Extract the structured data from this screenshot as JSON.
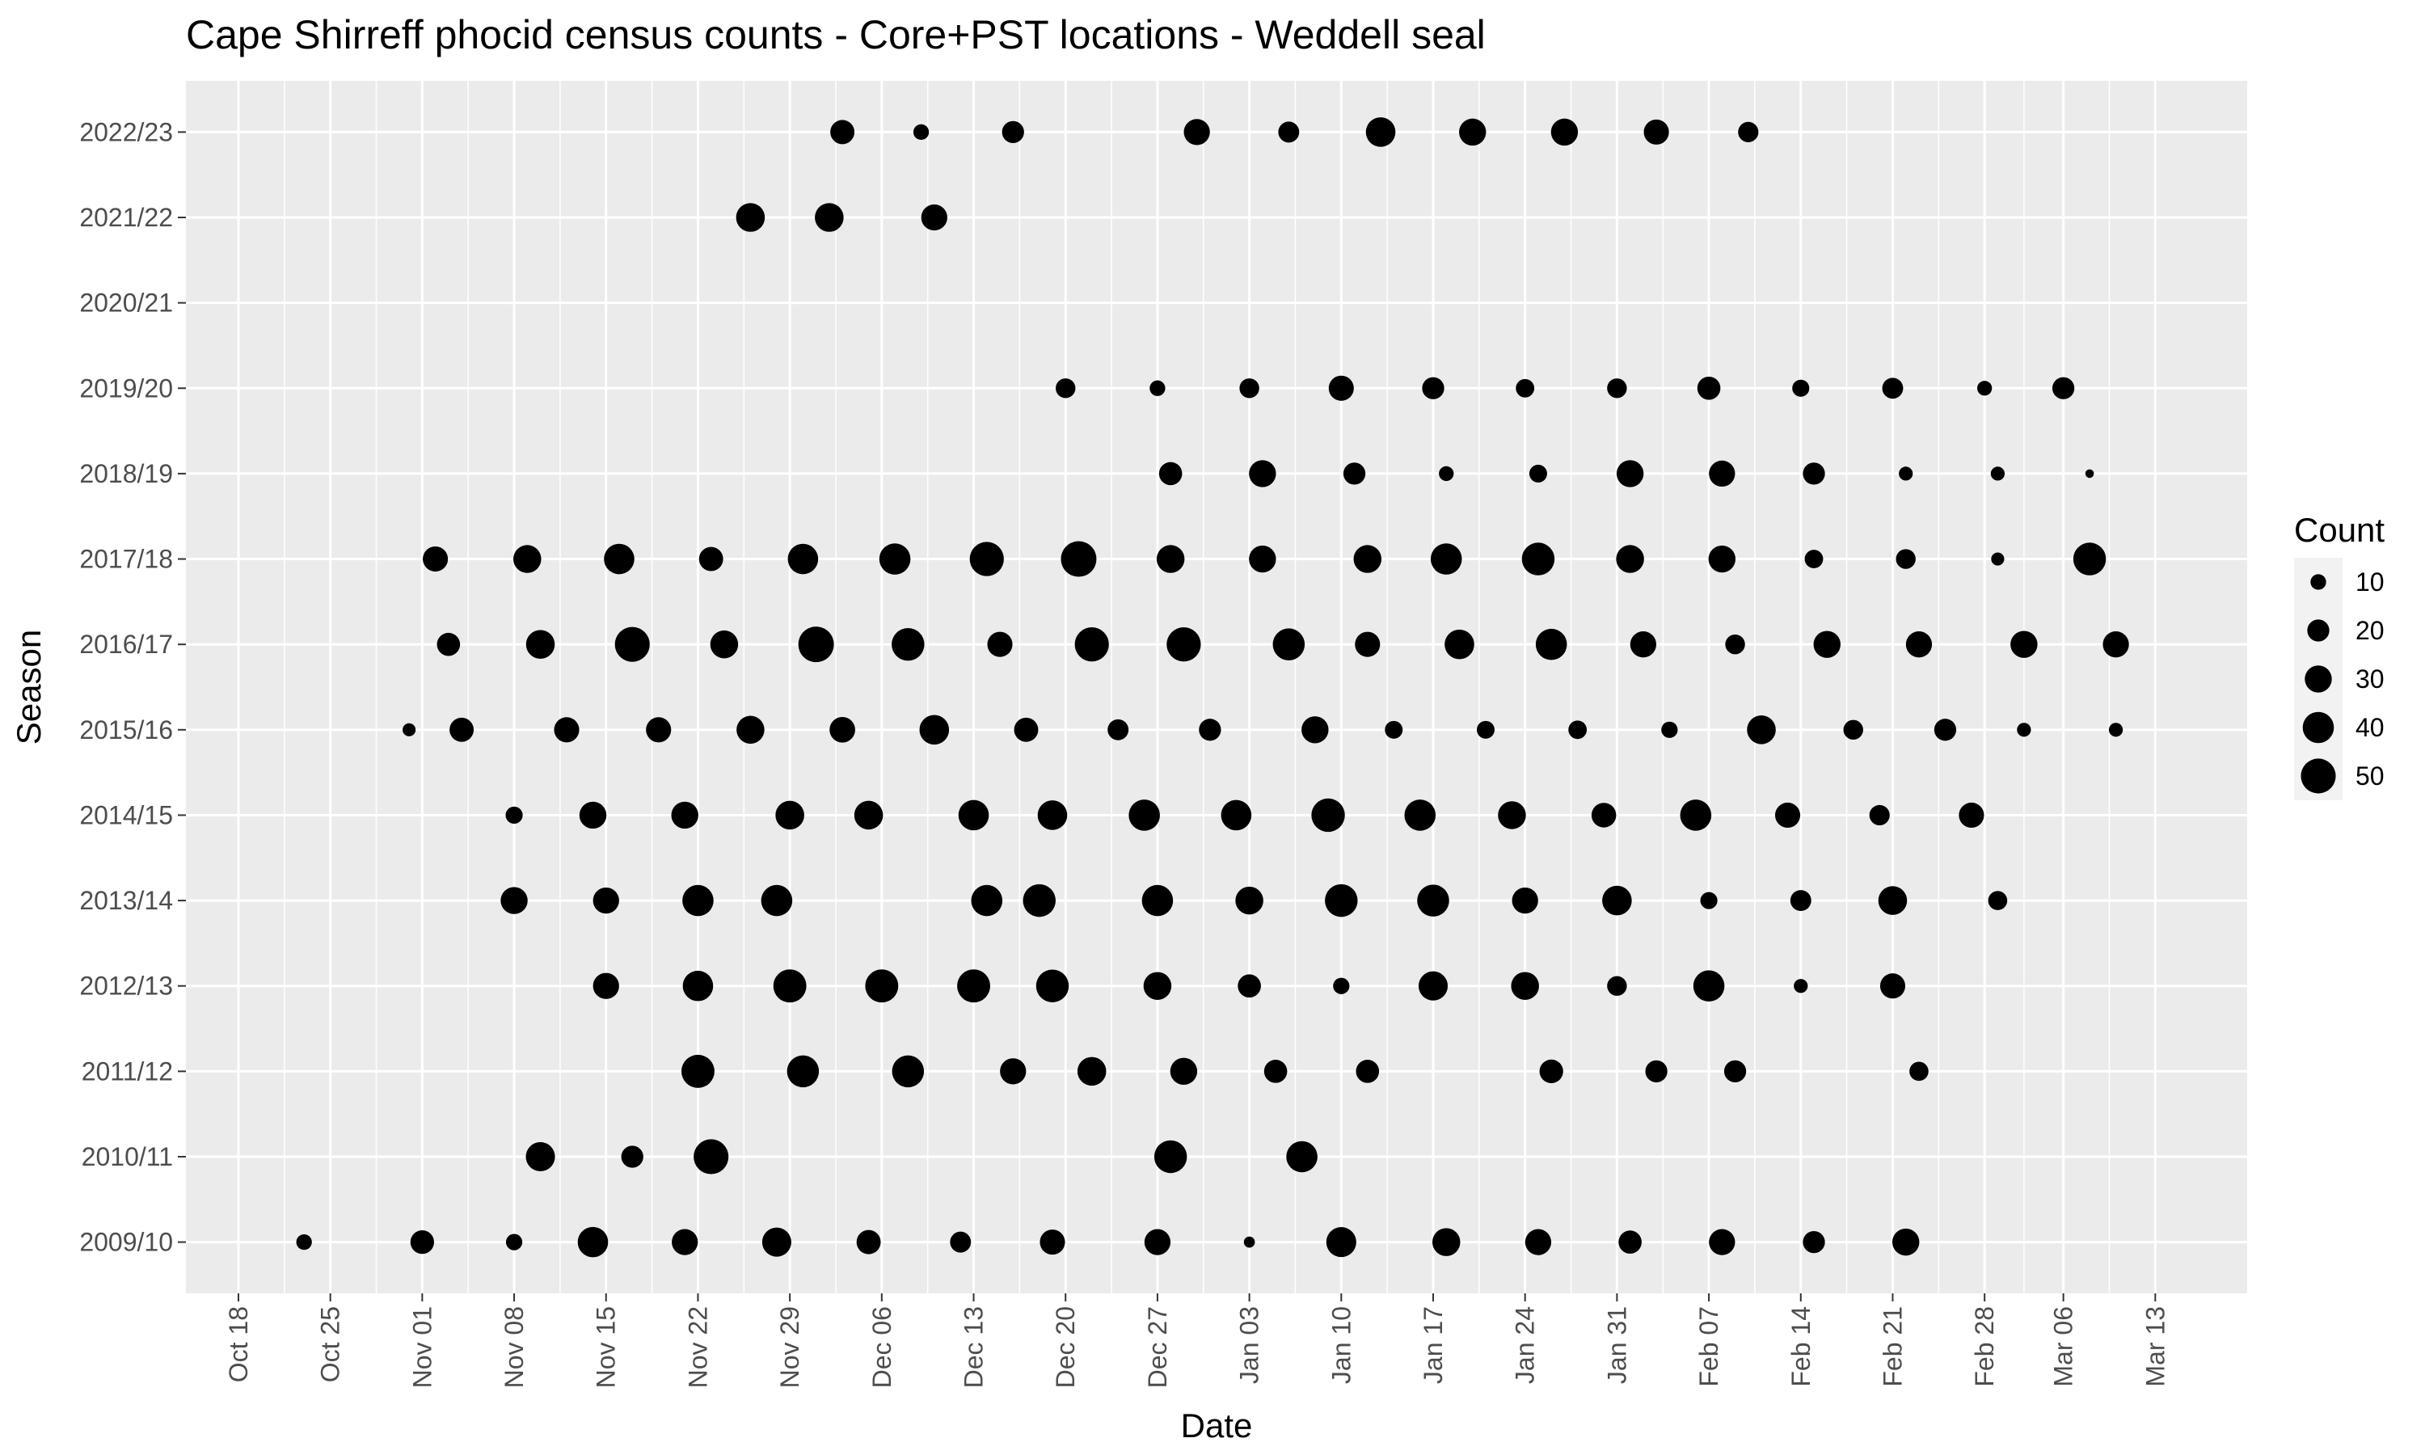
{
  "chart_data": {
    "type": "scatter",
    "title": "Cape Shirreff phocid census counts - Core+PST locations - Weddell seal",
    "xlabel": "Date",
    "ylabel": "Season",
    "xlim": [
      "Oct 14",
      "Mar 20"
    ],
    "x_ticks": [
      "Oct 18",
      "Oct 25",
      "Nov 01",
      "Nov 08",
      "Nov 15",
      "Nov 22",
      "Nov 29",
      "Dec 06",
      "Dec 13",
      "Dec 20",
      "Dec 27",
      "Jan 03",
      "Jan 10",
      "Jan 17",
      "Jan 24",
      "Jan 31",
      "Feb 07",
      "Feb 14",
      "Feb 21",
      "Feb 28",
      "Mar 06",
      "Mar 13"
    ],
    "categories": [
      "2009/10",
      "2010/11",
      "2011/12",
      "2012/13",
      "2013/14",
      "2014/15",
      "2015/16",
      "2016/17",
      "2017/18",
      "2018/19",
      "2019/20",
      "2020/21",
      "2021/22",
      "2022/23"
    ],
    "size_legend": {
      "title": "Count",
      "values": [
        10,
        20,
        30,
        40,
        50
      ]
    },
    "grid": true,
    "legend_position": "right",
    "colors": {
      "panel": "#ebebeb",
      "grid": "#ffffff",
      "point": "#000000"
    },
    "series": [
      {
        "values": [
          {
            "x": "Oct 23",
            "y": "2009/10",
            "count": 10
          },
          {
            "x": "Nov 01",
            "y": "2009/10",
            "count": 23
          },
          {
            "x": "Nov 08",
            "y": "2009/10",
            "count": 11
          },
          {
            "x": "Nov 14",
            "y": "2009/10",
            "count": 38
          },
          {
            "x": "Nov 21",
            "y": "2009/10",
            "count": 28
          },
          {
            "x": "Nov 28",
            "y": "2009/10",
            "count": 35
          },
          {
            "x": "Dec 05",
            "y": "2009/10",
            "count": 24
          },
          {
            "x": "Dec 12",
            "y": "2009/10",
            "count": 18
          },
          {
            "x": "Dec 19",
            "y": "2009/10",
            "count": 26
          },
          {
            "x": "Dec 27",
            "y": "2009/10",
            "count": 28
          },
          {
            "x": "Jan 03",
            "y": "2009/10",
            "count": 5
          },
          {
            "x": "Jan 10",
            "y": "2009/10",
            "count": 37
          },
          {
            "x": "Jan 18",
            "y": "2009/10",
            "count": 32
          },
          {
            "x": "Jan 25",
            "y": "2009/10",
            "count": 28
          },
          {
            "x": "Feb 01",
            "y": "2009/10",
            "count": 22
          },
          {
            "x": "Feb 08",
            "y": "2009/10",
            "count": 28
          },
          {
            "x": "Feb 15",
            "y": "2009/10",
            "count": 20
          },
          {
            "x": "Feb 22",
            "y": "2009/10",
            "count": 30
          },
          {
            "x": "Nov 10",
            "y": "2010/11",
            "count": 35
          },
          {
            "x": "Nov 17",
            "y": "2010/11",
            "count": 20
          },
          {
            "x": "Nov 23",
            "y": "2010/11",
            "count": 50
          },
          {
            "x": "Dec 28",
            "y": "2010/11",
            "count": 44
          },
          {
            "x": "Jan 07",
            "y": "2010/11",
            "count": 40
          },
          {
            "x": "Nov 22",
            "y": "2011/12",
            "count": 45
          },
          {
            "x": "Nov 30",
            "y": "2011/12",
            "count": 42
          },
          {
            "x": "Dec 08",
            "y": "2011/12",
            "count": 42
          },
          {
            "x": "Dec 16",
            "y": "2011/12",
            "count": 28
          },
          {
            "x": "Dec 22",
            "y": "2011/12",
            "count": 34
          },
          {
            "x": "Dec 29",
            "y": "2011/12",
            "count": 30
          },
          {
            "x": "Jan 05",
            "y": "2011/12",
            "count": 22
          },
          {
            "x": "Jan 12",
            "y": "2011/12",
            "count": 22
          },
          {
            "x": "Jan 26",
            "y": "2011/12",
            "count": 23
          },
          {
            "x": "Feb 03",
            "y": "2011/12",
            "count": 20
          },
          {
            "x": "Feb 09",
            "y": "2011/12",
            "count": 20
          },
          {
            "x": "Feb 23",
            "y": "2011/12",
            "count": 15
          },
          {
            "x": "Nov 15",
            "y": "2012/13",
            "count": 28
          },
          {
            "x": "Nov 22",
            "y": "2012/13",
            "count": 38
          },
          {
            "x": "Nov 29",
            "y": "2012/13",
            "count": 45
          },
          {
            "x": "Dec 06",
            "y": "2012/13",
            "count": 45
          },
          {
            "x": "Dec 13",
            "y": "2012/13",
            "count": 45
          },
          {
            "x": "Dec 19",
            "y": "2012/13",
            "count": 44
          },
          {
            "x": "Dec 27",
            "y": "2012/13",
            "count": 32
          },
          {
            "x": "Jan 03",
            "y": "2012/13",
            "count": 22
          },
          {
            "x": "Jan 10",
            "y": "2012/13",
            "count": 11
          },
          {
            "x": "Jan 17",
            "y": "2012/13",
            "count": 35
          },
          {
            "x": "Jan 24",
            "y": "2012/13",
            "count": 32
          },
          {
            "x": "Jan 31",
            "y": "2012/13",
            "count": 16
          },
          {
            "x": "Feb 07",
            "y": "2012/13",
            "count": 40
          },
          {
            "x": "Feb 14",
            "y": "2012/13",
            "count": 8
          },
          {
            "x": "Feb 21",
            "y": "2012/13",
            "count": 26
          },
          {
            "x": "Nov 08",
            "y": "2013/14",
            "count": 30
          },
          {
            "x": "Nov 15",
            "y": "2013/14",
            "count": 28
          },
          {
            "x": "Nov 22",
            "y": "2013/14",
            "count": 40
          },
          {
            "x": "Nov 28",
            "y": "2013/14",
            "count": 40
          },
          {
            "x": "Dec 14",
            "y": "2013/14",
            "count": 40
          },
          {
            "x": "Dec 18",
            "y": "2013/14",
            "count": 44
          },
          {
            "x": "Dec 27",
            "y": "2013/14",
            "count": 40
          },
          {
            "x": "Jan 03",
            "y": "2013/14",
            "count": 32
          },
          {
            "x": "Jan 10",
            "y": "2013/14",
            "count": 44
          },
          {
            "x": "Jan 17",
            "y": "2013/14",
            "count": 42
          },
          {
            "x": "Jan 24",
            "y": "2013/14",
            "count": 28
          },
          {
            "x": "Jan 31",
            "y": "2013/14",
            "count": 36
          },
          {
            "x": "Feb 07",
            "y": "2013/14",
            "count": 12
          },
          {
            "x": "Feb 14",
            "y": "2013/14",
            "count": 18
          },
          {
            "x": "Feb 21",
            "y": "2013/14",
            "count": 34
          },
          {
            "x": "Mar 01",
            "y": "2013/14",
            "count": 15
          },
          {
            "x": "Nov 08",
            "y": "2014/15",
            "count": 12
          },
          {
            "x": "Nov 14",
            "y": "2014/15",
            "count": 30
          },
          {
            "x": "Nov 21",
            "y": "2014/15",
            "count": 30
          },
          {
            "x": "Nov 29",
            "y": "2014/15",
            "count": 34
          },
          {
            "x": "Dec 05",
            "y": "2014/15",
            "count": 34
          },
          {
            "x": "Dec 13",
            "y": "2014/15",
            "count": 38
          },
          {
            "x": "Dec 19",
            "y": "2014/15",
            "count": 36
          },
          {
            "x": "Dec 26",
            "y": "2014/15",
            "count": 40
          },
          {
            "x": "Jan 02",
            "y": "2014/15",
            "count": 38
          },
          {
            "x": "Jan 09",
            "y": "2014/15",
            "count": 46
          },
          {
            "x": "Jan 16",
            "y": "2014/15",
            "count": 40
          },
          {
            "x": "Jan 23",
            "y": "2014/15",
            "count": 32
          },
          {
            "x": "Jan 30",
            "y": "2014/15",
            "count": 25
          },
          {
            "x": "Feb 06",
            "y": "2014/15",
            "count": 40
          },
          {
            "x": "Feb 13",
            "y": "2014/15",
            "count": 26
          },
          {
            "x": "Feb 20",
            "y": "2014/15",
            "count": 17
          },
          {
            "x": "Feb 27",
            "y": "2014/15",
            "count": 26
          },
          {
            "x": "Oct 31",
            "y": "2015/16",
            "count": 7
          },
          {
            "x": "Nov 04",
            "y": "2015/16",
            "count": 24
          },
          {
            "x": "Nov 12",
            "y": "2015/16",
            "count": 26
          },
          {
            "x": "Nov 19",
            "y": "2015/16",
            "count": 26
          },
          {
            "x": "Nov 26",
            "y": "2015/16",
            "count": 32
          },
          {
            "x": "Dec 03",
            "y": "2015/16",
            "count": 27
          },
          {
            "x": "Dec 10",
            "y": "2015/16",
            "count": 36
          },
          {
            "x": "Dec 17",
            "y": "2015/16",
            "count": 24
          },
          {
            "x": "Dec 24",
            "y": "2015/16",
            "count": 18
          },
          {
            "x": "Dec 31",
            "y": "2015/16",
            "count": 20
          },
          {
            "x": "Jan 08",
            "y": "2015/16",
            "count": 30
          },
          {
            "x": "Jan 14",
            "y": "2015/16",
            "count": 13
          },
          {
            "x": "Jan 21",
            "y": "2015/16",
            "count": 13
          },
          {
            "x": "Jan 28",
            "y": "2015/16",
            "count": 14
          },
          {
            "x": "Feb 04",
            "y": "2015/16",
            "count": 11
          },
          {
            "x": "Feb 11",
            "y": "2015/16",
            "count": 34
          },
          {
            "x": "Feb 18",
            "y": "2015/16",
            "count": 16
          },
          {
            "x": "Feb 25",
            "y": "2015/16",
            "count": 20
          },
          {
            "x": "Mar 03",
            "y": "2015/16",
            "count": 8
          },
          {
            "x": "Mar 10",
            "y": "2015/16",
            "count": 8
          },
          {
            "x": "Nov 03",
            "y": "2016/17",
            "count": 22
          },
          {
            "x": "Nov 10",
            "y": "2016/17",
            "count": 34
          },
          {
            "x": "Nov 17",
            "y": "2016/17",
            "count": 50
          },
          {
            "x": "Nov 24",
            "y": "2016/17",
            "count": 32
          },
          {
            "x": "Dec 01",
            "y": "2016/17",
            "count": 52
          },
          {
            "x": "Dec 08",
            "y": "2016/17",
            "count": 44
          },
          {
            "x": "Dec 15",
            "y": "2016/17",
            "count": 26
          },
          {
            "x": "Dec 22",
            "y": "2016/17",
            "count": 48
          },
          {
            "x": "Dec 29",
            "y": "2016/17",
            "count": 48
          },
          {
            "x": "Jan 06",
            "y": "2016/17",
            "count": 42
          },
          {
            "x": "Jan 12",
            "y": "2016/17",
            "count": 26
          },
          {
            "x": "Jan 19",
            "y": "2016/17",
            "count": 36
          },
          {
            "x": "Jan 26",
            "y": "2016/17",
            "count": 40
          },
          {
            "x": "Feb 02",
            "y": "2016/17",
            "count": 28
          },
          {
            "x": "Feb 09",
            "y": "2016/17",
            "count": 16
          },
          {
            "x": "Feb 16",
            "y": "2016/17",
            "count": 30
          },
          {
            "x": "Feb 23",
            "y": "2016/17",
            "count": 28
          },
          {
            "x": "Mar 03",
            "y": "2016/17",
            "count": 30
          },
          {
            "x": "Mar 10",
            "y": "2016/17",
            "count": 28
          },
          {
            "x": "Nov 02",
            "y": "2017/18",
            "count": 26
          },
          {
            "x": "Nov 09",
            "y": "2017/18",
            "count": 32
          },
          {
            "x": "Nov 16",
            "y": "2017/18",
            "count": 38
          },
          {
            "x": "Nov 23",
            "y": "2017/18",
            "count": 24
          },
          {
            "x": "Nov 30",
            "y": "2017/18",
            "count": 38
          },
          {
            "x": "Dec 07",
            "y": "2017/18",
            "count": 40
          },
          {
            "x": "Dec 14",
            "y": "2017/18",
            "count": 48
          },
          {
            "x": "Dec 21",
            "y": "2017/18",
            "count": 52
          },
          {
            "x": "Dec 28",
            "y": "2017/18",
            "count": 32
          },
          {
            "x": "Jan 04",
            "y": "2017/18",
            "count": 30
          },
          {
            "x": "Jan 12",
            "y": "2017/18",
            "count": 32
          },
          {
            "x": "Jan 18",
            "y": "2017/18",
            "count": 40
          },
          {
            "x": "Jan 25",
            "y": "2017/18",
            "count": 44
          },
          {
            "x": "Feb 01",
            "y": "2017/18",
            "count": 32
          },
          {
            "x": "Feb 08",
            "y": "2017/18",
            "count": 30
          },
          {
            "x": "Feb 15",
            "y": "2017/18",
            "count": 14
          },
          {
            "x": "Feb 22",
            "y": "2017/18",
            "count": 16
          },
          {
            "x": "Mar 01",
            "y": "2017/18",
            "count": 7
          },
          {
            "x": "Mar 08",
            "y": "2017/18",
            "count": 44
          },
          {
            "x": "Dec 28",
            "y": "2018/19",
            "count": 22
          },
          {
            "x": "Jan 04",
            "y": "2018/19",
            "count": 30
          },
          {
            "x": "Jan 11",
            "y": "2018/19",
            "count": 20
          },
          {
            "x": "Jan 18",
            "y": "2018/19",
            "count": 9
          },
          {
            "x": "Jan 25",
            "y": "2018/19",
            "count": 13
          },
          {
            "x": "Feb 01",
            "y": "2018/19",
            "count": 30
          },
          {
            "x": "Feb 08",
            "y": "2018/19",
            "count": 28
          },
          {
            "x": "Feb 15",
            "y": "2018/19",
            "count": 20
          },
          {
            "x": "Feb 22",
            "y": "2018/19",
            "count": 8
          },
          {
            "x": "Mar 01",
            "y": "2018/19",
            "count": 8
          },
          {
            "x": "Mar 08",
            "y": "2018/19",
            "count": 3
          },
          {
            "x": "Dec 20",
            "y": "2019/20",
            "count": 16
          },
          {
            "x": "Dec 27",
            "y": "2019/20",
            "count": 10
          },
          {
            "x": "Jan 03",
            "y": "2019/20",
            "count": 16
          },
          {
            "x": "Jan 10",
            "y": "2019/20",
            "count": 26
          },
          {
            "x": "Jan 17",
            "y": "2019/20",
            "count": 20
          },
          {
            "x": "Jan 24",
            "y": "2019/20",
            "count": 14
          },
          {
            "x": "Jan 31",
            "y": "2019/20",
            "count": 16
          },
          {
            "x": "Feb 07",
            "y": "2019/20",
            "count": 22
          },
          {
            "x": "Feb 14",
            "y": "2019/20",
            "count": 12
          },
          {
            "x": "Feb 21",
            "y": "2019/20",
            "count": 18
          },
          {
            "x": "Feb 28",
            "y": "2019/20",
            "count": 9
          },
          {
            "x": "Mar 06",
            "y": "2019/20",
            "count": 20
          },
          {
            "x": "Nov 26",
            "y": "2021/22",
            "count": 34
          },
          {
            "x": "Dec 02",
            "y": "2021/22",
            "count": 34
          },
          {
            "x": "Dec 10",
            "y": "2021/22",
            "count": 28
          },
          {
            "x": "Dec 03",
            "y": "2022/23",
            "count": 24
          },
          {
            "x": "Dec 09",
            "y": "2022/23",
            "count": 10
          },
          {
            "x": "Dec 16",
            "y": "2022/23",
            "count": 20
          },
          {
            "x": "Dec 30",
            "y": "2022/23",
            "count": 28
          },
          {
            "x": "Jan 06",
            "y": "2022/23",
            "count": 18
          },
          {
            "x": "Jan 13",
            "y": "2022/23",
            "count": 36
          },
          {
            "x": "Jan 20",
            "y": "2022/23",
            "count": 30
          },
          {
            "x": "Jan 27",
            "y": "2022/23",
            "count": 30
          },
          {
            "x": "Feb 03",
            "y": "2022/23",
            "count": 26
          },
          {
            "x": "Feb 10",
            "y": "2022/23",
            "count": 17
          }
        ]
      }
    ]
  }
}
